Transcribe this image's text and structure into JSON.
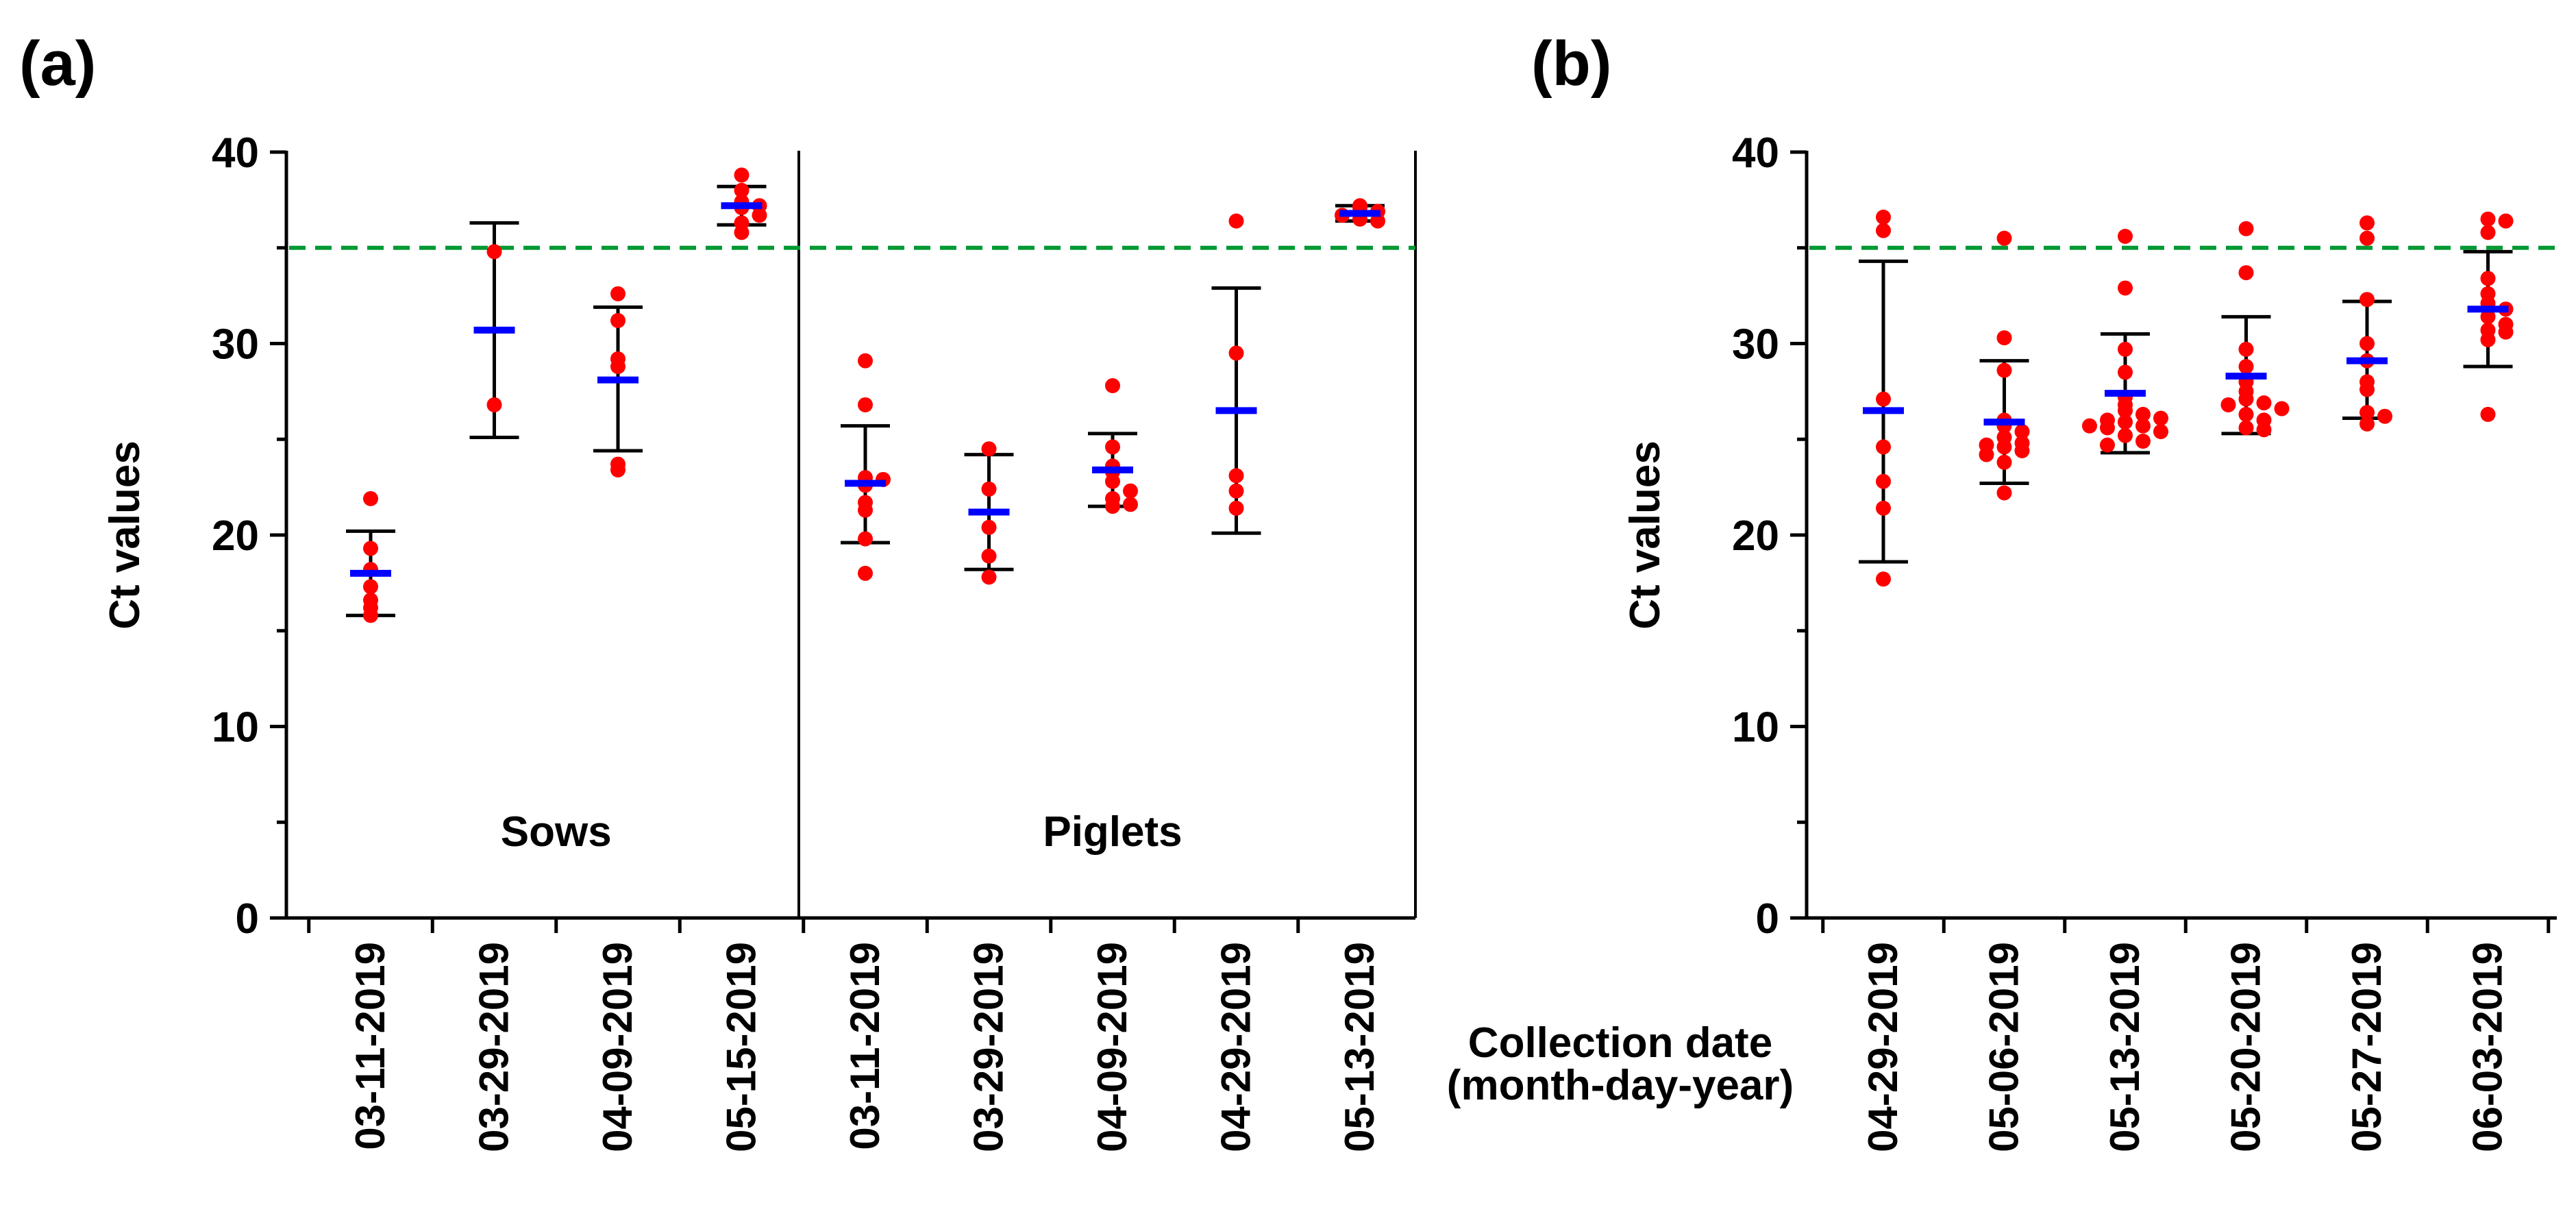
{
  "figure": {
    "panel_a_label": "(a)",
    "panel_b_label": "(b)",
    "xlabel_line1": "Collection date",
    "xlabel_line2": "(month-day-year)"
  },
  "colors": {
    "point": "#ff0000",
    "mean": "#0000ff",
    "errorbar": "#000000",
    "threshold": "#009933"
  },
  "chart_data": [
    {
      "type": "scatter",
      "panel": "a",
      "title": "",
      "xlabel": "Collection date (month-day-year)",
      "ylabel": "Ct values",
      "ylim": [
        0,
        40
      ],
      "yticks": [
        0,
        10,
        20,
        30,
        40
      ],
      "threshold": 35,
      "groups": [
        {
          "name": "Sows",
          "categories": [
            "03-11-2019",
            "03-29-2019",
            "04-09-2019",
            "05-15-2019"
          ]
        },
        {
          "name": "Piglets",
          "categories": [
            "03-11-2019",
            "03-29-2019",
            "04-09-2019",
            "04-29-2019",
            "05-13-2019"
          ]
        }
      ],
      "categories": [
        "03-11-2019",
        "03-29-2019",
        "04-09-2019",
        "05-15-2019",
        "03-11-2019",
        "03-29-2019",
        "04-09-2019",
        "04-29-2019",
        "05-13-2019"
      ],
      "series": [
        {
          "group": "Sows",
          "date": "03-11-2019",
          "mean": 18.0,
          "sd_low": 15.8,
          "sd_high": 20.2,
          "points": [
            21.9,
            19.3,
            18.2,
            17.3,
            16.6,
            15.8,
            16.2
          ]
        },
        {
          "group": "Sows",
          "date": "03-29-2019",
          "mean": 30.7,
          "sd_low": 25.1,
          "sd_high": 36.3,
          "points": [
            34.8,
            26.8
          ]
        },
        {
          "group": "Sows",
          "date": "04-09-2019",
          "mean": 28.1,
          "sd_low": 24.4,
          "sd_high": 31.9,
          "points": [
            32.6,
            31.2,
            29.2,
            28.8,
            23.7,
            23.4
          ]
        },
        {
          "group": "Sows",
          "date": "05-15-2019",
          "mean": 37.2,
          "sd_low": 36.2,
          "sd_high": 38.2,
          "points": [
            38.8,
            38.0,
            37.4,
            37.2,
            37.1,
            36.7,
            36.3,
            35.8
          ]
        },
        {
          "group": "Piglets",
          "date": "03-11-2019",
          "mean": 22.7,
          "sd_low": 19.6,
          "sd_high": 25.7,
          "points": [
            29.1,
            26.8,
            23.0,
            22.9,
            22.6,
            21.7,
            21.3,
            19.8,
            18.0
          ]
        },
        {
          "group": "Piglets",
          "date": "03-29-2019",
          "mean": 21.2,
          "sd_low": 18.2,
          "sd_high": 24.2,
          "points": [
            24.5,
            22.4,
            20.4,
            18.9,
            17.8
          ]
        },
        {
          "group": "Piglets",
          "date": "04-09-2019",
          "mean": 23.4,
          "sd_low": 21.5,
          "sd_high": 25.3,
          "points": [
            27.8,
            24.6,
            23.6,
            23.3,
            22.8,
            22.3,
            21.9,
            21.6,
            21.5
          ]
        },
        {
          "group": "Piglets",
          "date": "04-29-2019",
          "mean": 26.5,
          "sd_low": 20.1,
          "sd_high": 32.9,
          "points": [
            36.4,
            29.5,
            23.1,
            22.3,
            21.4
          ]
        },
        {
          "group": "Piglets",
          "date": "05-13-2019",
          "mean": 36.8,
          "sd_low": 36.4,
          "sd_high": 37.2,
          "points": [
            37.2,
            37.1,
            36.9,
            36.7,
            36.5,
            36.4
          ]
        }
      ]
    },
    {
      "type": "scatter",
      "panel": "b",
      "title": "",
      "xlabel": "Collection date (month-day-year)",
      "ylabel": "Ct values",
      "ylim": [
        0,
        40
      ],
      "yticks": [
        0,
        10,
        20,
        30,
        40
      ],
      "threshold": 35,
      "categories": [
        "04-29-2019",
        "05-06-2019",
        "05-13-2019",
        "05-20-2019",
        "05-27-2019",
        "06-03-2019"
      ],
      "series": [
        {
          "date": "04-29-2019",
          "mean": 26.5,
          "sd_low": 18.6,
          "sd_high": 34.3,
          "points": [
            36.6,
            35.9,
            27.1,
            24.6,
            22.8,
            21.4,
            17.7
          ]
        },
        {
          "date": "05-06-2019",
          "mean": 25.9,
          "sd_low": 22.7,
          "sd_high": 29.1,
          "points": [
            35.5,
            30.3,
            28.6,
            26.0,
            25.7,
            25.4,
            25.1,
            24.8,
            24.7,
            24.6,
            24.4,
            24.2,
            23.8,
            22.2
          ]
        },
        {
          "date": "05-13-2019",
          "mean": 27.4,
          "sd_low": 24.3,
          "sd_high": 30.5,
          "points": [
            35.6,
            32.9,
            29.7,
            28.5,
            27.2,
            26.8,
            26.5,
            26.3,
            26.0,
            25.9,
            25.7,
            25.6,
            25.4,
            25.2,
            24.9,
            24.7,
            25.7,
            26.1
          ]
        },
        {
          "date": "05-20-2019",
          "mean": 28.3,
          "sd_low": 25.3,
          "sd_high": 31.4,
          "points": [
            36.0,
            33.7,
            29.7,
            28.8,
            28.0,
            27.5,
            27.1,
            26.9,
            26.8,
            26.6,
            26.3,
            26.0,
            25.6,
            25.5
          ]
        },
        {
          "date": "05-27-2019",
          "mean": 29.1,
          "sd_low": 26.1,
          "sd_high": 32.2,
          "points": [
            36.3,
            35.5,
            32.3,
            30.0,
            29.1,
            28.0,
            27.6,
            26.4,
            26.2,
            25.8
          ]
        },
        {
          "date": "06-03-2019",
          "mean": 31.8,
          "sd_low": 28.8,
          "sd_high": 34.8,
          "points": [
            36.5,
            36.4,
            35.8,
            33.4,
            32.6,
            32.1,
            31.8,
            31.4,
            31.0,
            30.7,
            30.6,
            30.2,
            26.3
          ]
        }
      ]
    }
  ]
}
